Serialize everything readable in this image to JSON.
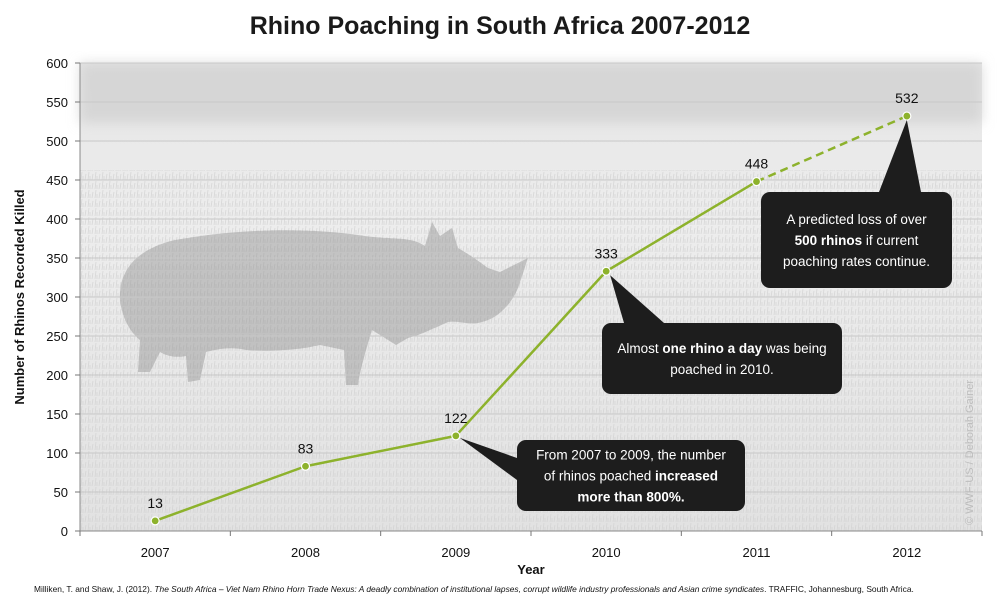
{
  "title": "Rhino Poaching in South Africa 2007-2012",
  "accent_color": "#8db22c",
  "chart_data": {
    "type": "line",
    "title": "Rhino Poaching in South Africa 2007-2012",
    "xlabel": "Year",
    "ylabel": "Number of Rhinos Recorded Killed",
    "categories": [
      "2007",
      "2008",
      "2009",
      "2010",
      "2011",
      "2012"
    ],
    "values": [
      13,
      83,
      122,
      333,
      448,
      532
    ],
    "data_labels": [
      "13",
      "83",
      "122",
      "333",
      "448",
      "532"
    ],
    "predicted_from_index": 4,
    "ylim": [
      0,
      600
    ],
    "yticks": [
      0,
      50,
      100,
      150,
      200,
      250,
      300,
      350,
      400,
      450,
      500,
      550,
      600
    ],
    "grid": true,
    "legend": "none",
    "background_image": "rhino-photo",
    "annotations": [
      {
        "x": "2009",
        "y": 122,
        "lines": [
          [
            {
              "t": "From 2007 to 2009, the number"
            }
          ],
          [
            {
              "t": "of rhinos poached "
            },
            {
              "t": "increased",
              "b": true
            }
          ],
          [
            {
              "t": "more than 800%.",
              "b": true
            }
          ]
        ]
      },
      {
        "x": "2010",
        "y": 333,
        "lines": [
          [
            {
              "t": "Almost "
            },
            {
              "t": "one rhino a day",
              "b": true
            },
            {
              "t": " was being"
            }
          ],
          [
            {
              "t": "poached in 2010."
            }
          ]
        ]
      },
      {
        "x": "2012",
        "y": 532,
        "lines": [
          [
            {
              "t": "A predicted loss of over"
            }
          ],
          [
            {
              "t": "500 rhinos",
              "b": true
            },
            {
              "t": " if current"
            }
          ],
          [
            {
              "t": "poaching rates continue."
            }
          ]
        ]
      }
    ]
  },
  "watermark": "© WWF-US / Deborah Gainer",
  "citation": {
    "authors": "Milliken, T. and Shaw, J. (2012). ",
    "work": "The South Africa – Viet Nam Rhino Horn Trade Nexus:  A deadly combination of institutional lapses, corrupt wildlife industry professionals and Asian crime syndicates",
    "publisher": ". TRAFFIC, Johannesburg, South Africa."
  }
}
